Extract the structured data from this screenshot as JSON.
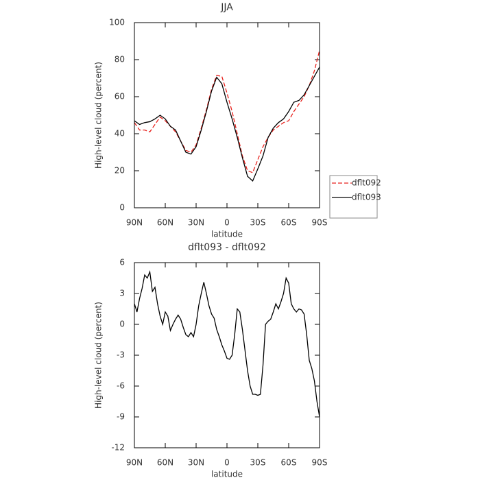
{
  "chart_data": [
    {
      "type": "line",
      "title": "JJA",
      "xlabel": "latitude",
      "ylabel": "High-level cloud (percent)",
      "xlim": [
        90,
        -90
      ],
      "xticks": [
        {
          "value": 90,
          "label": "90N"
        },
        {
          "value": 60,
          "label": "60N"
        },
        {
          "value": 30,
          "label": "30N"
        },
        0,
        {
          "value": -30,
          "label": "30S"
        },
        {
          "value": -60,
          "label": "60S"
        },
        {
          "value": -90,
          "label": "90S"
        }
      ],
      "ylim": [
        0,
        100
      ],
      "yticks": [
        0,
        20,
        40,
        60,
        80,
        100
      ],
      "legend": "right",
      "x": [
        90,
        85,
        80,
        75,
        70,
        65,
        60,
        55,
        50,
        45,
        40,
        35,
        30,
        25,
        20,
        15,
        10,
        5,
        0,
        -5,
        -10,
        -15,
        -20,
        -25,
        -30,
        -35,
        -40,
        -45,
        -50,
        -55,
        -60,
        -65,
        -70,
        -75,
        -80,
        -85,
        -90
      ],
      "series": [
        {
          "name": "dflt092",
          "color": "#e8211c",
          "style": "dashed",
          "values": [
            46,
            42,
            42,
            41,
            45,
            49,
            47,
            44,
            41,
            36,
            31,
            30,
            34,
            43,
            53,
            64,
            71.5,
            71,
            62,
            52,
            40,
            28,
            20,
            19,
            26,
            33,
            38,
            42,
            44,
            46,
            47,
            52,
            56,
            60,
            66,
            74,
            85
          ]
        },
        {
          "name": "dflt093",
          "color": "#000000",
          "style": "solid",
          "values": [
            47,
            45,
            46,
            46.5,
            48,
            50,
            48,
            44,
            42,
            36,
            30,
            29,
            33,
            42,
            52,
            63,
            70.5,
            67,
            57,
            48,
            38,
            27,
            17,
            14.5,
            21,
            28,
            38,
            43,
            46,
            48,
            52,
            57,
            58,
            61,
            66,
            71,
            76
          ]
        }
      ]
    },
    {
      "type": "line",
      "title": "dflt093 - dflt092",
      "xlabel": "latitude",
      "ylabel": "High-level cloud (percent)",
      "xlim": [
        90,
        -90
      ],
      "xticks": [
        {
          "value": 90,
          "label": "90N"
        },
        {
          "value": 60,
          "label": "60N"
        },
        {
          "value": 30,
          "label": "30N"
        },
        0,
        {
          "value": -30,
          "label": "30S"
        },
        {
          "value": -60,
          "label": "60S"
        },
        {
          "value": -90,
          "label": "90S"
        }
      ],
      "ylim": [
        -12,
        6
      ],
      "yticks": [
        -12,
        -9,
        -6,
        -3,
        0,
        3,
        6
      ],
      "x": [
        90,
        87.5,
        85,
        82.5,
        80,
        77.5,
        75,
        72.5,
        70,
        67.5,
        65,
        62.5,
        60,
        57.5,
        55,
        52.5,
        50,
        47.5,
        45,
        42.5,
        40,
        37.5,
        35,
        32.5,
        30,
        27.5,
        25,
        22.5,
        20,
        17.5,
        15,
        12.5,
        10,
        7.5,
        5,
        2.5,
        0,
        -2.5,
        -5,
        -7.5,
        -10,
        -12.5,
        -15,
        -17.5,
        -20,
        -22.5,
        -25,
        -27.5,
        -30,
        -32.5,
        -35,
        -37.5,
        -40,
        -42.5,
        -45,
        -47.5,
        -50,
        -52.5,
        -55,
        -57.5,
        -60,
        -62.5,
        -65,
        -67.5,
        -70,
        -72.5,
        -75,
        -77.5,
        -80,
        -82.5,
        -85,
        -87.5,
        -90
      ],
      "series": [
        {
          "color": "#000000",
          "style": "solid",
          "values": [
            2,
            1.2,
            2.5,
            3.5,
            4.8,
            4.5,
            5.1,
            3.2,
            3.6,
            2,
            0.8,
            0,
            1.2,
            0.8,
            -0.6,
            0,
            0.5,
            0.9,
            0.5,
            -0.3,
            -1,
            -1.2,
            -0.8,
            -1.2,
            0,
            1.8,
            3,
            4.1,
            3,
            1.8,
            1,
            0.6,
            -0.5,
            -1.2,
            -2,
            -2.6,
            -3.3,
            -3.4,
            -3,
            -1,
            1.5,
            1.2,
            -0.5,
            -2.5,
            -4.5,
            -6,
            -6.8,
            -6.8,
            -6.9,
            -6.8,
            -4,
            0,
            0.3,
            0.5,
            1.2,
            2,
            1.5,
            2.2,
            3,
            4.5,
            4,
            2,
            1.5,
            1.2,
            1.5,
            1.4,
            1,
            -1,
            -3.5,
            -4.3,
            -5.5,
            -7.5,
            -9
          ]
        }
      ]
    }
  ]
}
